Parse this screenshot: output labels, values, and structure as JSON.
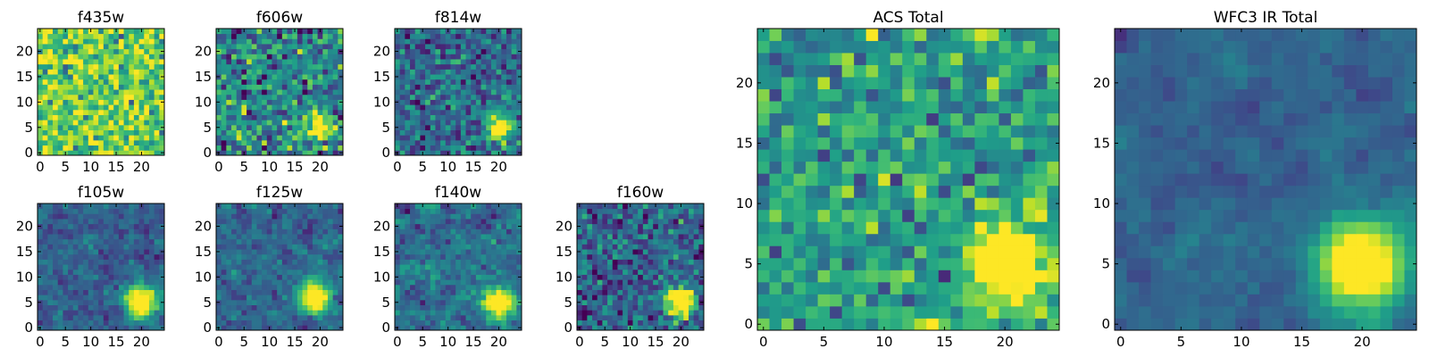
{
  "colormap": {
    "name": "viridis",
    "stops": [
      "#440154",
      "#482878",
      "#3e4989",
      "#31688e",
      "#26828e",
      "#1f9e89",
      "#35b779",
      "#6ece58",
      "#b5de2b",
      "#fde725"
    ]
  },
  "chart_data": [
    {
      "type": "heatmap",
      "title": "f435w",
      "xticks": [
        "0",
        "5",
        "10",
        "15",
        "20"
      ],
      "yticks": [
        "0",
        "5",
        "10",
        "15",
        "20"
      ],
      "grid_size": 25,
      "xlim": [
        0,
        25
      ],
      "ylim": [
        0,
        25
      ],
      "source": null,
      "noise_mean": 0.78,
      "noise_std": 0.18,
      "seed": 11,
      "smooth": 0
    },
    {
      "type": "heatmap",
      "title": "f606w",
      "xticks": [
        "0",
        "5",
        "10",
        "15",
        "20"
      ],
      "yticks": [
        "0",
        "5",
        "10",
        "15",
        "20"
      ],
      "grid_size": 25,
      "xlim": [
        0,
        25
      ],
      "ylim": [
        0,
        25
      ],
      "source": {
        "x": 20,
        "y": 5,
        "peak": 0.9,
        "sigma": 1.6
      },
      "noise_mean": 0.45,
      "noise_std": 0.2,
      "seed": 23,
      "smooth": 0
    },
    {
      "type": "heatmap",
      "title": "f814w",
      "xticks": [
        "0",
        "5",
        "10",
        "15",
        "20"
      ],
      "yticks": [
        "0",
        "5",
        "10",
        "15",
        "20"
      ],
      "grid_size": 25,
      "xlim": [
        0,
        25
      ],
      "ylim": [
        0,
        25
      ],
      "source": {
        "x": 20,
        "y": 5,
        "peak": 1.0,
        "sigma": 1.7
      },
      "noise_mean": 0.35,
      "noise_std": 0.15,
      "seed": 37,
      "smooth": 0
    },
    {
      "type": "heatmap",
      "title": "f105w",
      "xticks": [
        "0",
        "5",
        "10",
        "15",
        "20"
      ],
      "yticks": [
        "0",
        "5",
        "10",
        "15",
        "20"
      ],
      "grid_size": 25,
      "xlim": [
        0,
        25
      ],
      "ylim": [
        0,
        25
      ],
      "source": {
        "x": 20,
        "y": 5,
        "peak": 1.0,
        "sigma": 2.3
      },
      "noise_mean": 0.3,
      "noise_std": 0.14,
      "seed": 41,
      "smooth": 1
    },
    {
      "type": "heatmap",
      "title": "f125w",
      "xticks": [
        "0",
        "5",
        "10",
        "15",
        "20"
      ],
      "yticks": [
        "0",
        "5",
        "10",
        "15",
        "20"
      ],
      "grid_size": 25,
      "xlim": [
        0,
        25
      ],
      "ylim": [
        0,
        25
      ],
      "source": {
        "x": 19,
        "y": 6,
        "peak": 1.0,
        "sigma": 2.1
      },
      "noise_mean": 0.33,
      "noise_std": 0.15,
      "seed": 53,
      "smooth": 1
    },
    {
      "type": "heatmap",
      "title": "f140w",
      "xticks": [
        "0",
        "5",
        "10",
        "15",
        "20"
      ],
      "yticks": [
        "0",
        "5",
        "10",
        "15",
        "20"
      ],
      "grid_size": 25,
      "xlim": [
        0,
        25
      ],
      "ylim": [
        0,
        25
      ],
      "source": {
        "x": 20,
        "y": 5,
        "peak": 1.0,
        "sigma": 2.0
      },
      "noise_mean": 0.35,
      "noise_std": 0.16,
      "seed": 67,
      "smooth": 1
    },
    {
      "type": "heatmap",
      "title": "f160w",
      "xticks": [
        "0",
        "5",
        "10",
        "15",
        "20"
      ],
      "yticks": [
        "0",
        "5",
        "10",
        "15",
        "20"
      ],
      "grid_size": 25,
      "xlim": [
        0,
        25
      ],
      "ylim": [
        0,
        25
      ],
      "source": {
        "x": 20,
        "y": 5,
        "peak": 1.0,
        "sigma": 2.0
      },
      "noise_mean": 0.32,
      "noise_std": 0.16,
      "seed": 79,
      "smooth": 0
    },
    {
      "type": "heatmap",
      "title": "ACS Total",
      "xticks": [
        "0",
        "5",
        "10",
        "15",
        "20"
      ],
      "yticks": [
        "0",
        "5",
        "10",
        "15",
        "20"
      ],
      "grid_size": 25,
      "xlim": [
        0,
        25
      ],
      "ylim": [
        0,
        25
      ],
      "source": {
        "x": 20,
        "y": 5,
        "peak": 1.0,
        "sigma": 2.0
      },
      "noise_mean": 0.55,
      "noise_std": 0.16,
      "seed": 97,
      "smooth": 0
    },
    {
      "type": "heatmap",
      "title": "WFC3 IR Total",
      "xticks": [
        "0",
        "5",
        "10",
        "15",
        "20"
      ],
      "yticks": [
        "0",
        "5",
        "10",
        "15",
        "20"
      ],
      "grid_size": 25,
      "xlim": [
        0,
        25
      ],
      "ylim": [
        0,
        25
      ],
      "source": {
        "x": 20,
        "y": 5,
        "peak": 1.0,
        "sigma": 2.6
      },
      "noise_mean": 0.32,
      "noise_std": 0.12,
      "seed": 101,
      "smooth": 2
    }
  ]
}
